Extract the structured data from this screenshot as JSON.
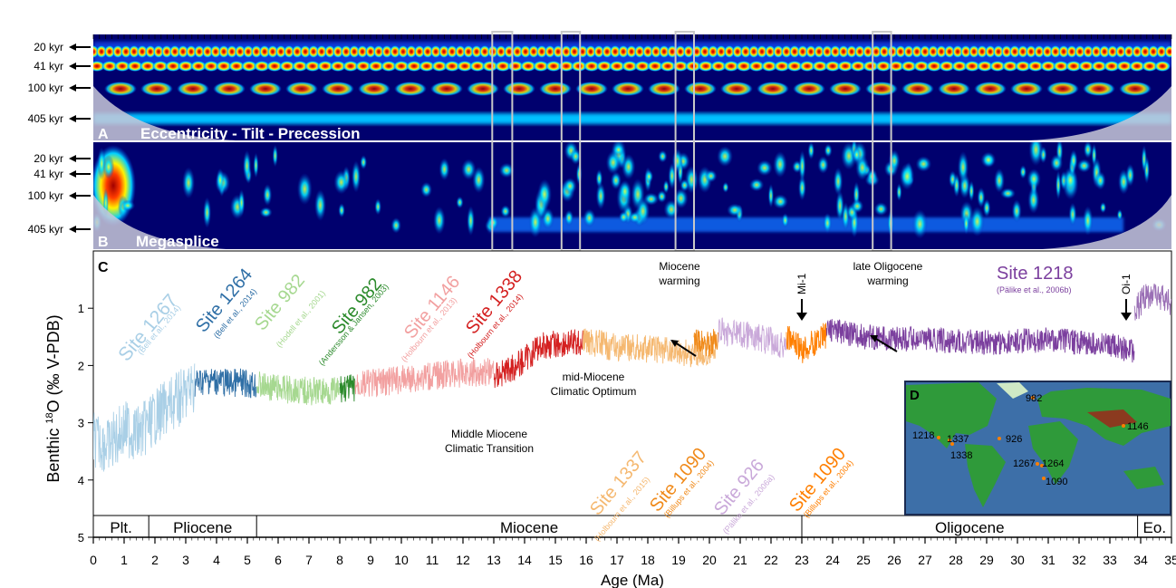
{
  "chart_data": [
    {
      "panel": "A",
      "type": "heatmap",
      "title": "Eccentricity - Tilt - Precession",
      "period_labels": [
        "20 kyr",
        "41 kyr",
        "100 kyr",
        "405 kyr"
      ],
      "xlim": [
        0,
        35
      ],
      "colormap": [
        "#00006e",
        "#0044e0",
        "#00c8ff",
        "#fff200",
        "#ff3c00",
        "#a00000"
      ]
    },
    {
      "panel": "B",
      "type": "heatmap",
      "title": "Megasplice",
      "period_labels": [
        "20 kyr",
        "41 kyr",
        "100 kyr",
        "405 kyr"
      ],
      "xlim": [
        0,
        35
      ]
    },
    {
      "panel": "C",
      "type": "line",
      "xlabel": "Age (Ma)",
      "ylabel": "Benthic δ¹⁸O (‰ V-PDB)",
      "ylabel_parts": [
        "Benthic ",
        "18",
        "O (‰ V-PDB)"
      ],
      "xlim": [
        0,
        35
      ],
      "ylim": [
        5,
        0
      ],
      "x_ticks": [
        "0",
        "1",
        "2",
        "3",
        "4",
        "5",
        "6",
        "7",
        "8",
        "9",
        "10",
        "11",
        "12",
        "13",
        "14",
        "15",
        "16",
        "17",
        "18",
        "19",
        "20",
        "21",
        "22",
        "23",
        "24",
        "25",
        "26",
        "27",
        "28",
        "29",
        "30",
        "31",
        "32",
        "33",
        "34",
        "35"
      ],
      "y_ticks": [
        "1",
        "2",
        "3",
        "4",
        "5"
      ],
      "series": [
        {
          "name": "Site 1267",
          "citation": "(Bell et al., 2014)",
          "color": "#a9cfe6",
          "x": [
            0,
            0.5,
            1,
            1.5,
            2,
            2.5,
            3,
            3.3
          ],
          "y": [
            3.3,
            3.4,
            3.1,
            3.2,
            2.9,
            2.7,
            2.5,
            2.3
          ]
        },
        {
          "name": "Site 1264",
          "citation": "(Bell et al., 2014)",
          "color": "#2f6fa6",
          "x": [
            3.3,
            3.8,
            4.3,
            4.8,
            5.3
          ],
          "y": [
            2.3,
            2.25,
            2.3,
            2.3,
            2.35
          ]
        },
        {
          "name": "Site 982",
          "citation": "(Hodell et al., 2001)",
          "color": "#a6d890",
          "x": [
            5.3,
            6,
            7,
            8
          ],
          "y": [
            2.35,
            2.4,
            2.45,
            2.45
          ]
        },
        {
          "name": "Site 982",
          "citation": "(Andersson & Jansen, 2003)",
          "color": "#2b8a2b",
          "x": [
            8,
            8.5
          ],
          "y": [
            2.4,
            2.4
          ]
        },
        {
          "name": "Site 1146",
          "citation": "(Holbourn et al., 2013)",
          "color": "#f2a0a0",
          "x": [
            8.5,
            10,
            11.5,
            13
          ],
          "y": [
            2.35,
            2.25,
            2.15,
            2.1
          ]
        },
        {
          "name": "Site 1338",
          "citation": "(Holbourn et al., 2014)",
          "color": "#d42020",
          "x": [
            13,
            13.9,
            14.5,
            15.9
          ],
          "y": [
            2.2,
            1.95,
            1.65,
            1.6
          ]
        },
        {
          "name": "Site 1337",
          "citation": "(Holbourn et al., 2015)",
          "color": "#f5b870",
          "x": [
            15.9,
            17,
            18,
            19.5,
            20.2
          ],
          "y": [
            1.55,
            1.7,
            1.7,
            1.8,
            1.7
          ]
        },
        {
          "name": "Site 1090",
          "citation": "(Billups et al., 2004)",
          "color": "#f08a1a",
          "x": [
            19.5,
            20.3
          ],
          "y": [
            1.6,
            1.6
          ]
        },
        {
          "name": "Site 926",
          "citation": "(Pälike et al., 2006a)",
          "color": "#c9a8d9",
          "x": [
            20.3,
            21.5,
            22.5
          ],
          "y": [
            1.4,
            1.5,
            1.65
          ]
        },
        {
          "name": "Site 1090",
          "citation": "(Billups et al., 2004)",
          "color": "#ff7f00",
          "x": [
            22.5,
            23,
            23.8
          ],
          "y": [
            1.5,
            1.75,
            1.45
          ]
        },
        {
          "name": "Site 1218",
          "citation": "(Pälike et al., 2006b)",
          "color": "#7b3f9e",
          "x": [
            23.8,
            25,
            27,
            29,
            31,
            33,
            33.8
          ],
          "y": [
            1.35,
            1.5,
            1.55,
            1.6,
            1.55,
            1.65,
            1.75
          ]
        },
        {
          "name": "",
          "citation": "",
          "color": "#9a6fb5",
          "x": [
            33.8,
            34.2,
            35
          ],
          "y": [
            1.05,
            0.75,
            0.9
          ]
        }
      ],
      "annotations": [
        "Miocene warming",
        "Mi-1",
        "late Oligocene warming",
        "Oi-1",
        "mid-Miocene Climatic Optimum",
        "Middle Miocene Climatic Transition"
      ],
      "epochs": [
        {
          "name": "Plt.",
          "start": 0,
          "end": 1.8
        },
        {
          "name": "Pliocene",
          "start": 1.8,
          "end": 5.3
        },
        {
          "name": "Miocene",
          "start": 5.3,
          "end": 23
        },
        {
          "name": "Oligocene",
          "start": 23,
          "end": 33.9
        },
        {
          "name": "Eo.",
          "start": 33.9,
          "end": 35
        }
      ]
    },
    {
      "panel": "D",
      "type": "map",
      "site_labels": [
        "982",
        "1218",
        "1337",
        "1338",
        "926",
        "1267",
        "1264",
        "1090",
        "1146"
      ]
    }
  ],
  "panel_letters": [
    "A",
    "B",
    "C",
    "D"
  ],
  "highlight_boxes_ma": [
    [
      12.95,
      13.6
    ],
    [
      15.2,
      15.8
    ],
    [
      18.9,
      19.5
    ],
    [
      25.3,
      25.9
    ]
  ],
  "colors": {
    "land_green": "#2f9a3a",
    "ocean_blue": "#3d6fa8",
    "panel_dark_blue": "#00007a"
  }
}
